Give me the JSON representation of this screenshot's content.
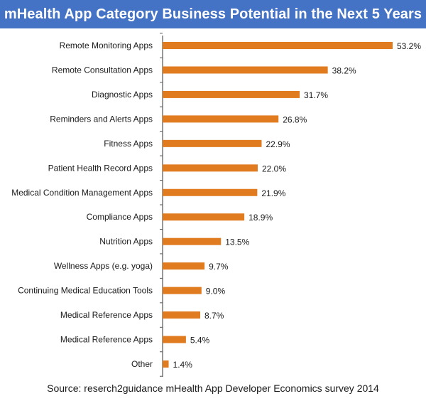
{
  "chart_data": {
    "type": "bar",
    "orientation": "horizontal",
    "title": "mHealth App Category Business Potential in the Next 5 Years",
    "categories": [
      "Remote Monitoring Apps",
      "Remote Consultation Apps",
      "Diagnostic Apps",
      "Reminders and Alerts Apps",
      "Fitness Apps",
      "Patient Health Record Apps",
      "Medical Condition Management Apps",
      "Compliance Apps",
      "Nutrition Apps",
      "Wellness Apps (e.g. yoga)",
      "Continuing Medical Education Tools",
      "Medical Reference Apps",
      "Medical Reference Apps",
      "Other"
    ],
    "values": [
      53.2,
      38.2,
      31.7,
      26.8,
      22.9,
      22.0,
      21.9,
      18.9,
      13.5,
      9.7,
      9.0,
      8.7,
      5.4,
      1.4
    ],
    "value_labels": [
      "53.2%",
      "38.2%",
      "31.7%",
      "26.8%",
      "22.9%",
      "22.0%",
      "21.9%",
      "18.9%",
      "13.5%",
      "9.7%",
      "9.0%",
      "8.7%",
      "5.4%",
      "1.4%"
    ],
    "xlim": [
      0,
      53.2
    ],
    "grid": false,
    "source": "Source: reserch2guidance mHealth App Developer Economics survey 2014",
    "colors": {
      "bar": "#e07b1f",
      "title_bg": "#4472c4",
      "axis": "#555555"
    }
  }
}
